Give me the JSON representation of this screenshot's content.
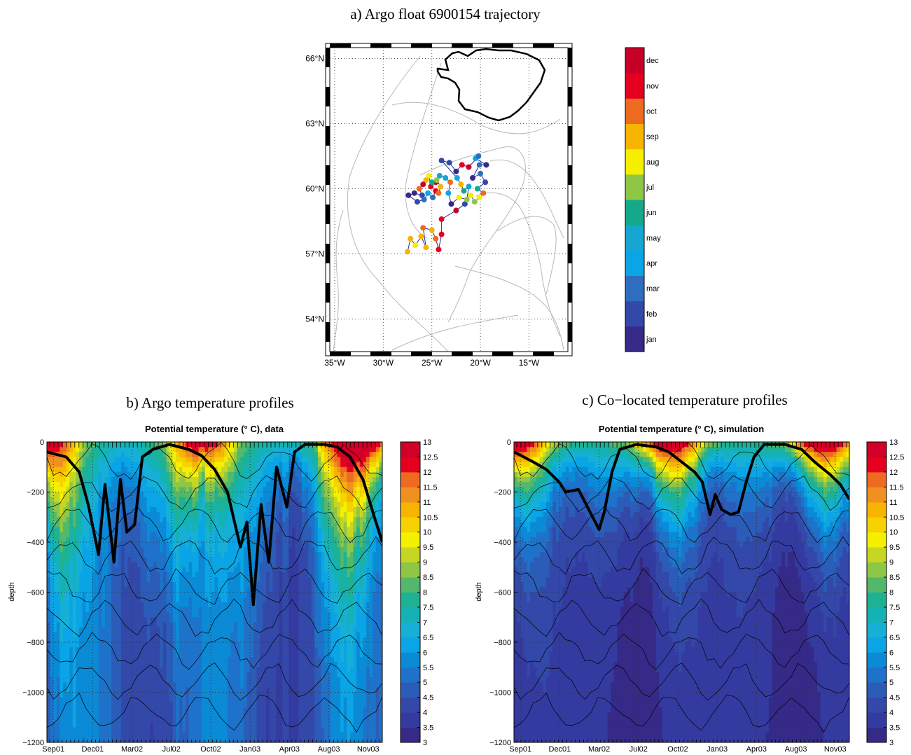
{
  "panels": {
    "a_title": "a) Argo float 6900154 trajectory",
    "b_title": "b) Argo temperature profiles",
    "c_title": "c) Co−located temperature profiles"
  },
  "chart_data": [
    {
      "type": "scatter",
      "panel": "a",
      "title": "a) Argo float 6900154 trajectory",
      "x_ticks": [
        {
          "value": -35,
          "label": "35°W"
        },
        {
          "value": -30,
          "label": "30°W"
        },
        {
          "value": -25,
          "label": "25°W"
        },
        {
          "value": -20,
          "label": "20°W"
        },
        {
          "value": -15,
          "label": "15°W"
        }
      ],
      "y_ticks": [
        {
          "value": 54,
          "label": "54°N"
        },
        {
          "value": 57,
          "label": "57°N"
        },
        {
          "value": 60,
          "label": "60°N"
        },
        {
          "value": 63,
          "label": "63°N"
        },
        {
          "value": 66,
          "label": "66°N"
        }
      ],
      "xlim": [
        -35.5,
        -11
      ],
      "ylim": [
        52.5,
        66.5
      ],
      "grid": true,
      "colorbar": {
        "labels": [
          "jan",
          "feb",
          "mar",
          "apr",
          "may",
          "jun",
          "jul",
          "aug",
          "sep",
          "oct",
          "nov",
          "dec"
        ],
        "colors": [
          "#352a87",
          "#3348a8",
          "#2f6dbf",
          "#0aa5e6",
          "#16a6d1",
          "#14a98a",
          "#8ec745",
          "#f4f000",
          "#f7b400",
          "#ee6a20",
          "#e5001f",
          "#c7002a"
        ]
      },
      "points": [
        {
          "lon": -27.5,
          "lat": 57.1,
          "m": 9
        },
        {
          "lon": -27.2,
          "lat": 57.7,
          "m": 9
        },
        {
          "lon": -26.7,
          "lat": 57.4,
          "m": 8
        },
        {
          "lon": -26.1,
          "lat": 57.8,
          "m": 9
        },
        {
          "lon": -25.6,
          "lat": 57.3,
          "m": 9
        },
        {
          "lon": -25.9,
          "lat": 58.2,
          "m": 10
        },
        {
          "lon": -25.0,
          "lat": 58.1,
          "m": 9
        },
        {
          "lon": -24.6,
          "lat": 57.7,
          "m": 10
        },
        {
          "lon": -24.3,
          "lat": 57.2,
          "m": 11
        },
        {
          "lon": -24.0,
          "lat": 57.9,
          "m": 11
        },
        {
          "lon": -24.0,
          "lat": 58.6,
          "m": 11
        },
        {
          "lon": -22.5,
          "lat": 59.0,
          "m": 12
        },
        {
          "lon": -21.6,
          "lat": 59.3,
          "m": 2
        },
        {
          "lon": -21.0,
          "lat": 59.7,
          "m": 8
        },
        {
          "lon": -20.6,
          "lat": 59.4,
          "m": 7
        },
        {
          "lon": -20.1,
          "lat": 59.6,
          "m": 8
        },
        {
          "lon": -19.7,
          "lat": 59.8,
          "m": 10
        },
        {
          "lon": -20.3,
          "lat": 60.0,
          "m": 6
        },
        {
          "lon": -19.5,
          "lat": 60.3,
          "m": 2
        },
        {
          "lon": -20.0,
          "lat": 60.7,
          "m": 3
        },
        {
          "lon": -20.8,
          "lat": 60.5,
          "m": 1
        },
        {
          "lon": -20.1,
          "lat": 61.1,
          "m": 3
        },
        {
          "lon": -19.4,
          "lat": 61.1,
          "m": 1
        },
        {
          "lon": -20.5,
          "lat": 61.4,
          "m": 4
        },
        {
          "lon": -20.2,
          "lat": 61.5,
          "m": 3
        },
        {
          "lon": -21.2,
          "lat": 61.0,
          "m": 12
        },
        {
          "lon": -21.9,
          "lat": 61.1,
          "m": 11
        },
        {
          "lon": -22.5,
          "lat": 60.8,
          "m": 1
        },
        {
          "lon": -23.2,
          "lat": 61.2,
          "m": 2
        },
        {
          "lon": -24.0,
          "lat": 61.3,
          "m": 2
        },
        {
          "lon": -22.4,
          "lat": 60.5,
          "m": 5
        },
        {
          "lon": -22.0,
          "lat": 60.2,
          "m": 9
        },
        {
          "lon": -21.7,
          "lat": 59.9,
          "m": 6
        },
        {
          "lon": -21.2,
          "lat": 60.1,
          "m": 4
        },
        {
          "lon": -21.4,
          "lat": 59.5,
          "m": 7
        },
        {
          "lon": -22.2,
          "lat": 59.6,
          "m": 8
        },
        {
          "lon": -23.0,
          "lat": 59.3,
          "m": 1
        },
        {
          "lon": -23.3,
          "lat": 59.8,
          "m": 4
        },
        {
          "lon": -23.1,
          "lat": 60.3,
          "m": 10
        },
        {
          "lon": -23.6,
          "lat": 60.5,
          "m": 5
        },
        {
          "lon": -24.2,
          "lat": 60.6,
          "m": 5
        },
        {
          "lon": -24.6,
          "lat": 60.3,
          "m": 12
        },
        {
          "lon": -25.1,
          "lat": 60.1,
          "m": 11
        },
        {
          "lon": -25.3,
          "lat": 60.6,
          "m": 8
        },
        {
          "lon": -25.6,
          "lat": 60.4,
          "m": 9
        },
        {
          "lon": -25.9,
          "lat": 60.2,
          "m": 12
        },
        {
          "lon": -26.3,
          "lat": 60.0,
          "m": 10
        },
        {
          "lon": -26.0,
          "lat": 59.7,
          "m": 2
        },
        {
          "lon": -26.8,
          "lat": 59.8,
          "m": 1
        },
        {
          "lon": -27.4,
          "lat": 59.7,
          "m": 1
        },
        {
          "lon": -26.5,
          "lat": 59.4,
          "m": 2
        },
        {
          "lon": -25.8,
          "lat": 59.5,
          "m": 3
        },
        {
          "lon": -25.4,
          "lat": 59.8,
          "m": 4
        },
        {
          "lon": -24.9,
          "lat": 59.6,
          "m": 3
        },
        {
          "lon": -24.6,
          "lat": 59.9,
          "m": 11
        },
        {
          "lon": -24.3,
          "lat": 59.8,
          "m": 10
        },
        {
          "lon": -24.1,
          "lat": 60.1,
          "m": 9
        },
        {
          "lon": -24.5,
          "lat": 60.4,
          "m": 7
        },
        {
          "lon": -25.0,
          "lat": 60.3,
          "m": 6
        }
      ]
    },
    {
      "type": "heatmap",
      "panel": "b",
      "title": "Potential temperature (° C), data",
      "xlabel": "",
      "ylabel": "depth",
      "x_ticks": [
        "Sep01",
        "Dec01",
        "Mar02",
        "Jul02",
        "Oct02",
        "Jan03",
        "Apr03",
        "Aug03",
        "Nov03"
      ],
      "y_ticks": [
        0,
        -200,
        -400,
        -600,
        -800,
        -1000,
        -1200
      ],
      "ylim": [
        -1200,
        0
      ],
      "grid": true,
      "mld": [
        {
          "t": 0.0,
          "d": -40
        },
        {
          "t": 1.5,
          "d": -60
        },
        {
          "t": 2.5,
          "d": -120
        },
        {
          "t": 3.2,
          "d": -250
        },
        {
          "t": 4.0,
          "d": -450
        },
        {
          "t": 4.5,
          "d": -170
        },
        {
          "t": 5.2,
          "d": -480
        },
        {
          "t": 5.7,
          "d": -150
        },
        {
          "t": 6.2,
          "d": -360
        },
        {
          "t": 6.8,
          "d": -330
        },
        {
          "t": 7.4,
          "d": -60
        },
        {
          "t": 8.2,
          "d": -30
        },
        {
          "t": 9.5,
          "d": -10
        },
        {
          "t": 11.0,
          "d": -30
        },
        {
          "t": 12.0,
          "d": -55
        },
        {
          "t": 13.0,
          "d": -110
        },
        {
          "t": 14.0,
          "d": -200
        },
        {
          "t": 15.0,
          "d": -420
        },
        {
          "t": 15.5,
          "d": -320
        },
        {
          "t": 16.0,
          "d": -650
        },
        {
          "t": 16.6,
          "d": -250
        },
        {
          "t": 17.2,
          "d": -480
        },
        {
          "t": 17.8,
          "d": -100
        },
        {
          "t": 18.6,
          "d": -260
        },
        {
          "t": 19.2,
          "d": -40
        },
        {
          "t": 20.0,
          "d": -10
        },
        {
          "t": 21.5,
          "d": -10
        },
        {
          "t": 22.5,
          "d": -20
        },
        {
          "t": 23.5,
          "d": -60
        },
        {
          "t": 24.5,
          "d": -150
        },
        {
          "t": 25.5,
          "d": -320
        },
        {
          "t": 26.0,
          "d": -400
        }
      ]
    },
    {
      "type": "heatmap",
      "panel": "c",
      "title": "Potential temperature (° C), simulation",
      "xlabel": "",
      "ylabel": "depth",
      "x_ticks": [
        "Sep01",
        "Dec01",
        "Mar02",
        "Jul02",
        "Oct02",
        "Jan03",
        "Apr03",
        "Aug03",
        "Nov03"
      ],
      "y_ticks": [
        0,
        -200,
        -400,
        -600,
        -800,
        -1000,
        -1200
      ],
      "ylim": [
        -1200,
        0
      ],
      "grid": true,
      "mld": [
        {
          "t": 0.0,
          "d": -40
        },
        {
          "t": 1.5,
          "d": -80
        },
        {
          "t": 2.5,
          "d": -110
        },
        {
          "t": 3.5,
          "d": -160
        },
        {
          "t": 4.0,
          "d": -200
        },
        {
          "t": 5.0,
          "d": -190
        },
        {
          "t": 6.0,
          "d": -290
        },
        {
          "t": 6.6,
          "d": -350
        },
        {
          "t": 7.0,
          "d": -280
        },
        {
          "t": 7.6,
          "d": -120
        },
        {
          "t": 8.2,
          "d": -30
        },
        {
          "t": 9.5,
          "d": -10
        },
        {
          "t": 11.0,
          "d": -20
        },
        {
          "t": 12.0,
          "d": -40
        },
        {
          "t": 13.0,
          "d": -80
        },
        {
          "t": 14.0,
          "d": -120
        },
        {
          "t": 14.6,
          "d": -160
        },
        {
          "t": 15.2,
          "d": -290
        },
        {
          "t": 15.6,
          "d": -210
        },
        {
          "t": 16.1,
          "d": -270
        },
        {
          "t": 16.8,
          "d": -290
        },
        {
          "t": 17.4,
          "d": -280
        },
        {
          "t": 18.0,
          "d": -160
        },
        {
          "t": 18.6,
          "d": -60
        },
        {
          "t": 19.4,
          "d": -10
        },
        {
          "t": 21.0,
          "d": -10
        },
        {
          "t": 22.3,
          "d": -30
        },
        {
          "t": 23.3,
          "d": -80
        },
        {
          "t": 24.5,
          "d": -130
        },
        {
          "t": 25.3,
          "d": -170
        },
        {
          "t": 26.0,
          "d": -230
        }
      ]
    }
  ],
  "temp_colorbar": {
    "labels": [
      "3",
      "3.5",
      "4",
      "4.5",
      "5",
      "5.5",
      "6",
      "6.5",
      "7",
      "7.5",
      "8",
      "8.5",
      "9",
      "9.5",
      "10",
      "10.5",
      "11",
      "11.5",
      "12",
      "12.5",
      "13"
    ],
    "colors": [
      "#352a87",
      "#343ba0",
      "#3348a8",
      "#2b5cb8",
      "#1f72c9",
      "#0b8ad6",
      "#0aa5e6",
      "#16b0d6",
      "#14b2b4",
      "#1fb194",
      "#53b86b",
      "#8ec745",
      "#c6d623",
      "#f4f000",
      "#f6d200",
      "#f7b400",
      "#f09020",
      "#ee6a20",
      "#e5001f",
      "#d20028"
    ]
  }
}
